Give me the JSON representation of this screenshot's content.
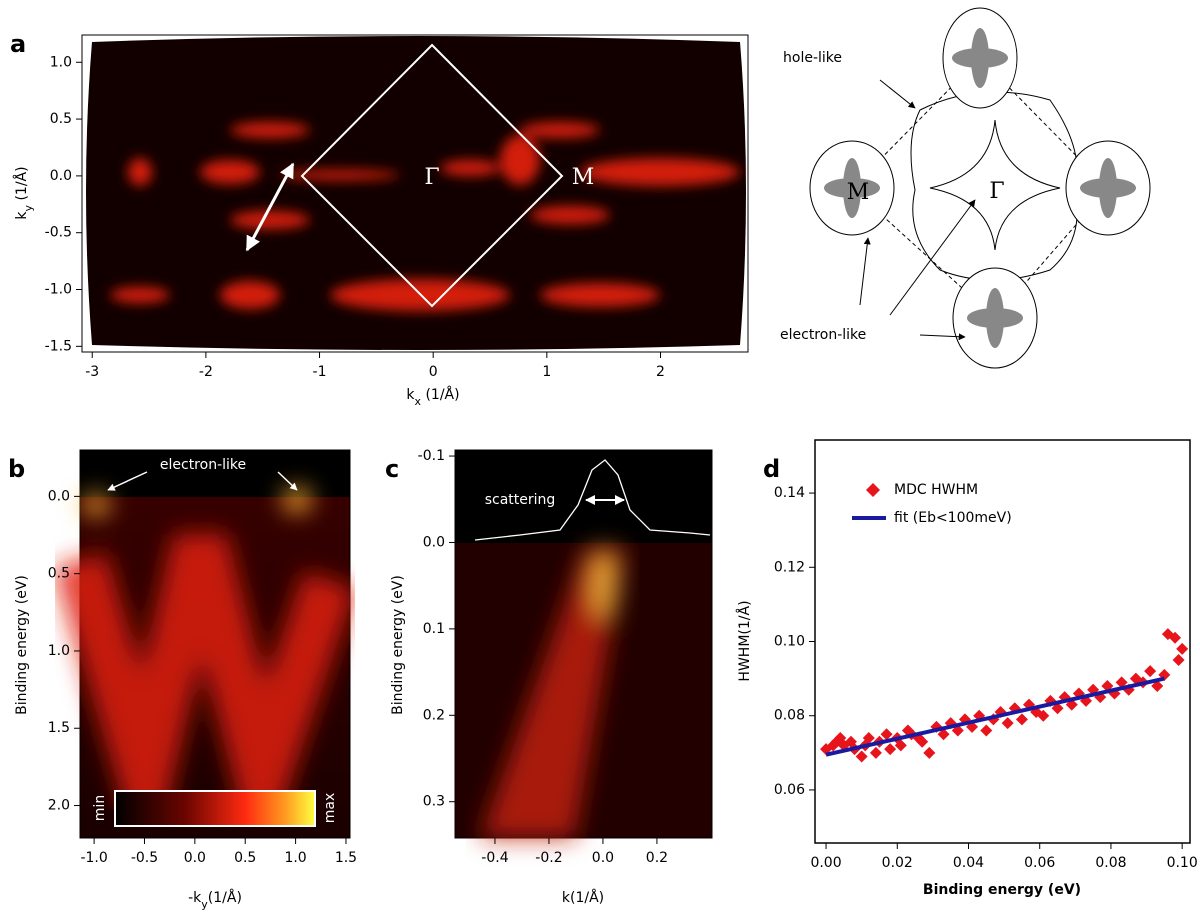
{
  "chart_data": [
    {
      "type": "image",
      "panel": "a",
      "xlabel": {
        "text": "k",
        "sub": "x",
        "unit": " (1/Å)"
      },
      "ylabel": {
        "text": "k",
        "sub": "y",
        "unit": " (1/Å)"
      },
      "xlim": [
        -3.09,
        2.77
      ],
      "ylim": [
        -1.55,
        1.24
      ],
      "xticks": [
        -3,
        -2,
        -1,
        0,
        1,
        2
      ],
      "yticks": [
        -1.5,
        {
          "value": -1.0,
          "label": "-1.0"
        },
        -0.5,
        {
          "value": 0.0,
          "label": "0.0"
        },
        0.5,
        {
          "value": 1.0,
          "label": "1.0"
        }
      ],
      "annotations": [
        "Γ",
        "M"
      ]
    },
    {
      "type": "image",
      "panel": "b",
      "xlabel": {
        "text": "-k",
        "sub": "y",
        "unit": "(1/Å)"
      },
      "ylabel": {
        "text": "Binding energy (eV)"
      },
      "xlim": [
        -1.14,
        1.54
      ],
      "ylim": [
        2.21,
        -0.3
      ],
      "xticks": [
        {
          "value": -1.0,
          "label": "-1.0"
        },
        -0.5,
        {
          "value": 0.0,
          "label": "0.0"
        },
        0.5,
        {
          "value": 1.0,
          "label": "1.0"
        },
        1.5
      ],
      "yticks": [
        {
          "value": 0.0,
          "label": "0.0"
        },
        0.5,
        {
          "value": 1.0,
          "label": "1.0"
        },
        1.5,
        {
          "value": 2.0,
          "label": "2.0"
        }
      ],
      "annotations": [
        "electron-like"
      ],
      "colorbar": [
        "min",
        "max"
      ]
    },
    {
      "type": "image",
      "panel": "c",
      "xlabel": {
        "text": "k(1/Å)"
      },
      "ylabel": {
        "text": "Binding energy (eV)"
      },
      "xlim": [
        -0.548,
        0.404
      ],
      "ylim": [
        0.342,
        -0.107
      ],
      "xticks": [
        -0.4,
        -0.2,
        {
          "value": 0.0,
          "label": "0.0"
        },
        0.2
      ],
      "yticks": [
        -0.1,
        {
          "value": 0.0,
          "label": "0.0"
        },
        0.1,
        0.2,
        0.3
      ],
      "annotations": [
        "scattering"
      ]
    },
    {
      "type": "scatter",
      "panel": "d",
      "xlabel": {
        "text": "Binding energy (eV)"
      },
      "ylabel": {
        "text": "HWHM(1/Å)"
      },
      "xlim": [
        -0.0031,
        0.1022
      ],
      "ylim": [
        0.0457,
        0.1543
      ],
      "xticks": [
        {
          "value": 0.0,
          "label": "0.00"
        },
        {
          "value": 0.02,
          "label": "0.02"
        },
        {
          "value": 0.04,
          "label": "0.04"
        },
        {
          "value": 0.06,
          "label": "0.06"
        },
        {
          "value": 0.08,
          "label": "0.08"
        },
        {
          "value": 0.1,
          "label": "0.10"
        }
      ],
      "yticks": [
        {
          "value": 0.06,
          "label": "0.06"
        },
        {
          "value": 0.08,
          "label": "0.08"
        },
        {
          "value": 0.1,
          "label": "0.10"
        },
        {
          "value": 0.12,
          "label": "0.12"
        },
        {
          "value": 0.14,
          "label": "0.14"
        }
      ],
      "series": [
        {
          "name": "MDC HWHM",
          "color": "#e8141c",
          "kind": "markers",
          "x": [
            0.0,
            0.002,
            0.003,
            0.004,
            0.005,
            0.007,
            0.008,
            0.01,
            0.011,
            0.012,
            0.014,
            0.015,
            0.017,
            0.018,
            0.02,
            0.021,
            0.023,
            0.024,
            0.026,
            0.027,
            0.029,
            0.031,
            0.033,
            0.035,
            0.037,
            0.039,
            0.041,
            0.043,
            0.045,
            0.047,
            0.049,
            0.051,
            0.053,
            0.055,
            0.057,
            0.059,
            0.061,
            0.063,
            0.065,
            0.067,
            0.069,
            0.071,
            0.073,
            0.075,
            0.077,
            0.079,
            0.081,
            0.083,
            0.085,
            0.087,
            0.089,
            0.091,
            0.093,
            0.095,
            0.096,
            0.098,
            0.099,
            0.1
          ],
          "values": [
            0.071,
            0.072,
            0.073,
            0.074,
            0.072,
            0.073,
            0.071,
            0.069,
            0.072,
            0.074,
            0.07,
            0.073,
            0.075,
            0.071,
            0.074,
            0.072,
            0.076,
            0.075,
            0.074,
            0.073,
            0.07,
            0.077,
            0.075,
            0.078,
            0.076,
            0.079,
            0.077,
            0.08,
            0.076,
            0.079,
            0.081,
            0.078,
            0.082,
            0.079,
            0.083,
            0.081,
            0.08,
            0.084,
            0.082,
            0.085,
            0.083,
            0.086,
            0.084,
            0.087,
            0.085,
            0.088,
            0.086,
            0.089,
            0.087,
            0.09,
            0.089,
            0.092,
            0.088,
            0.091,
            0.102,
            0.101,
            0.095,
            0.098
          ]
        },
        {
          "name": "fit (Eb<100meV)",
          "color": "#1a1aa0",
          "kind": "line",
          "x": [
            0.0,
            0.095
          ],
          "values": [
            0.0695,
            0.09
          ]
        }
      ]
    }
  ],
  "schematic": {
    "labels": [
      "hole-like",
      "electron-like",
      "M",
      "Γ"
    ]
  }
}
